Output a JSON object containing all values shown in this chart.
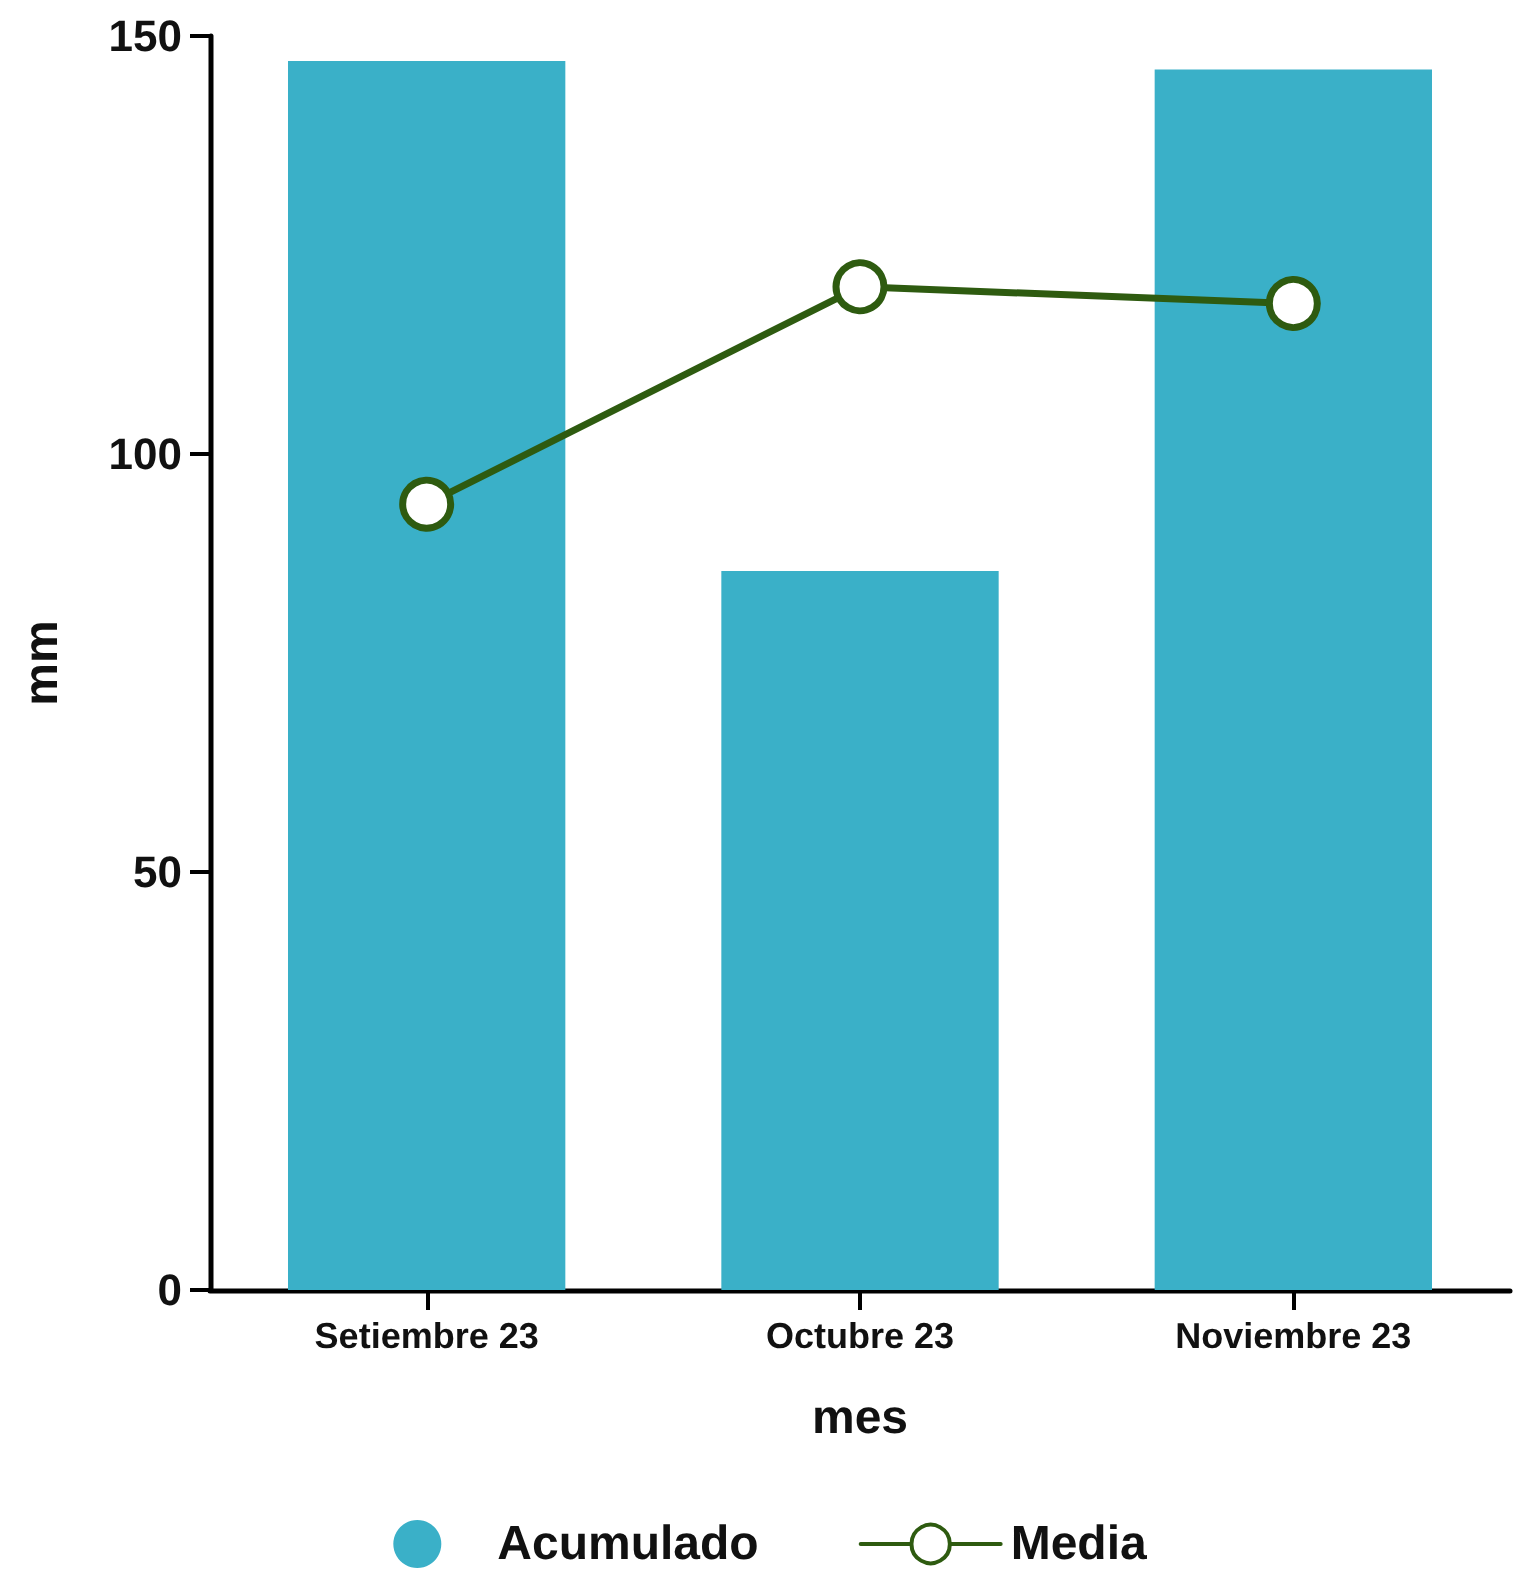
{
  "chart_data": {
    "type": "bar",
    "xlabel": "mes",
    "ylabel": "mm",
    "categories": [
      "Setiembre 23",
      "Octubre 23",
      "Noviembre 23"
    ],
    "series": [
      {
        "name": "Acumulado",
        "color": "#3ab0c8",
        "values": [
          147,
          86,
          146
        ]
      },
      {
        "name": "Media",
        "type": "line",
        "color": "#2e5b10",
        "values": [
          94,
          120,
          118
        ]
      }
    ],
    "ylim": [
      0,
      150
    ],
    "yticks": [
      0,
      50,
      100,
      150
    ],
    "grid": false,
    "legend": "bottom",
    "marker": "circle",
    "line_style": "solid"
  }
}
